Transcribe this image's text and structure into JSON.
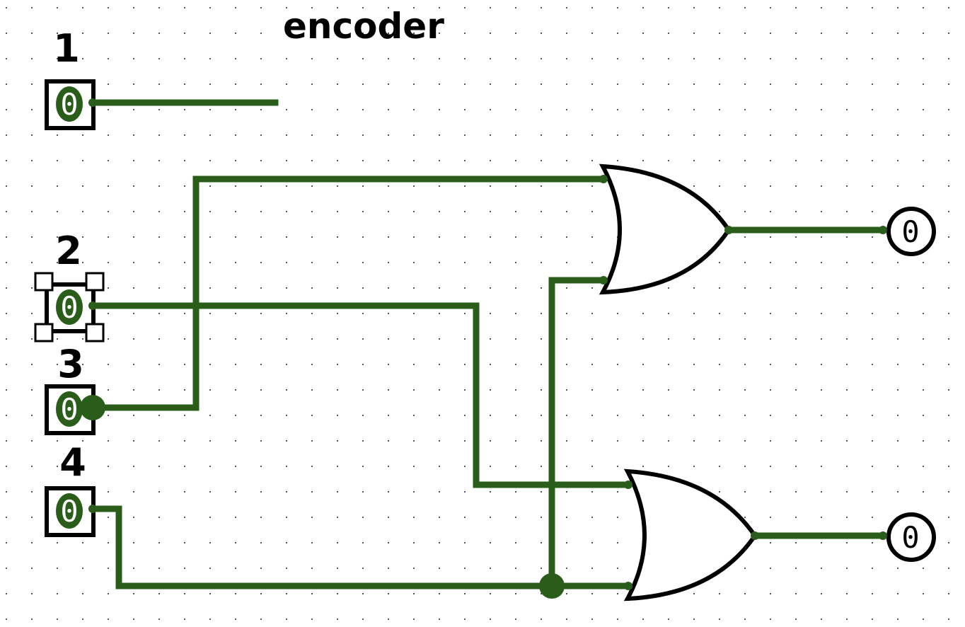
{
  "circuit": {
    "title": "encoder",
    "inputs": [
      {
        "label": "1",
        "value": "0"
      },
      {
        "label": "2",
        "value": "0"
      },
      {
        "label": "3",
        "value": "0"
      },
      {
        "label": "4",
        "value": "0"
      }
    ],
    "outputs": [
      {
        "value": "0"
      },
      {
        "value": "0"
      }
    ],
    "gates": [
      {
        "type": "OR"
      },
      {
        "type": "OR"
      }
    ]
  },
  "colors": {
    "wire": "#2b5d1a",
    "pin_fill": "#2b5d1a",
    "grid_dot": "#555555",
    "outline": "#000000"
  }
}
